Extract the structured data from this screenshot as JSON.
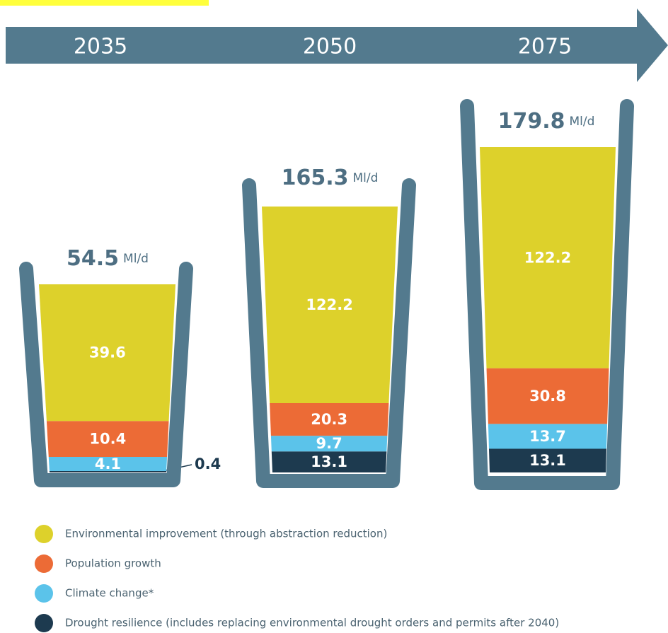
{
  "chart_data": {
    "type": "stacked-bar",
    "categories": [
      "2035",
      "2050",
      "2075"
    ],
    "totals": [
      54.5,
      165.3,
      179.8
    ],
    "unit": "Ml/d",
    "series": [
      {
        "name": "Drought resilience (includes replacing environmental drought orders and permits after 2040)",
        "color": "#1d3a4f",
        "values": [
          0.4,
          13.1,
          13.1
        ]
      },
      {
        "name": "Climate change*",
        "color": "#5bc3ea",
        "values": [
          4.1,
          9.7,
          13.7
        ]
      },
      {
        "name": "Population growth",
        "color": "#ec6b36",
        "values": [
          10.4,
          20.3,
          30.8
        ]
      },
      {
        "name": "Environmental improvement (through abstraction reduction)",
        "color": "#ddd12b",
        "values": [
          39.6,
          122.2,
          122.2
        ]
      }
    ]
  }
}
